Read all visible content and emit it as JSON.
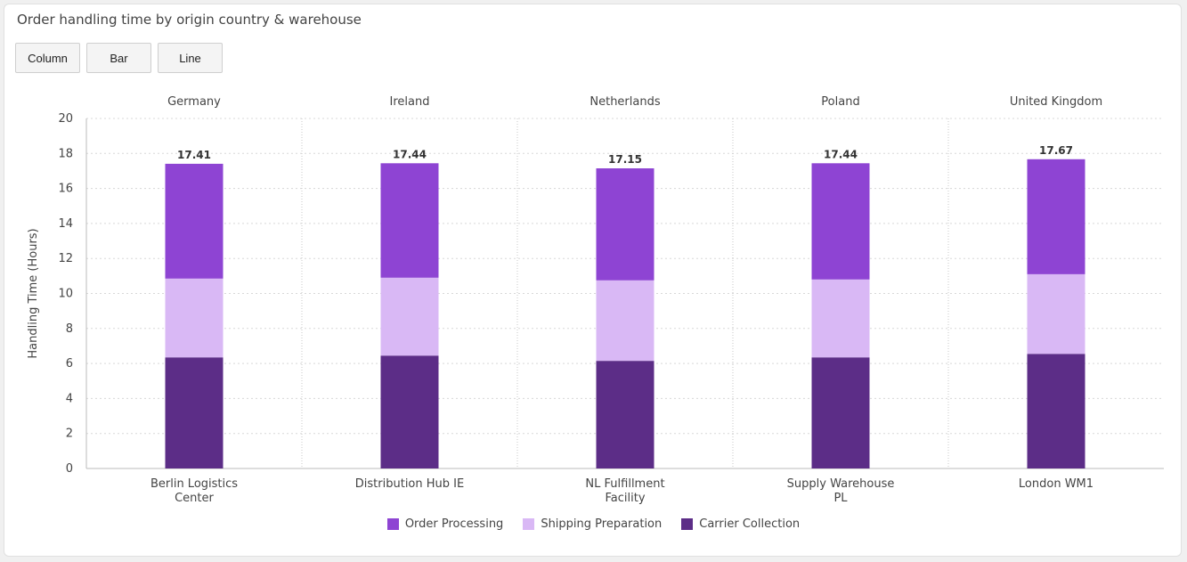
{
  "title": "Order handling time by origin country & warehouse",
  "buttons": {
    "column": "Column",
    "bar": "Bar",
    "line": "Line"
  },
  "chart_data": {
    "type": "bar",
    "stacked": true,
    "groups": [
      "Germany",
      "Ireland",
      "Netherlands",
      "Poland",
      "United Kingdom"
    ],
    "categories": [
      [
        "Berlin Logistics",
        "Center"
      ],
      [
        "Distribution Hub IE"
      ],
      [
        "NL Fulfillment",
        "Facility"
      ],
      [
        "Supply Warehouse",
        "PL"
      ],
      [
        "London WM1"
      ]
    ],
    "series": [
      {
        "name": "Carrier Collection",
        "color": "#5c2d87",
        "values": [
          6.35,
          6.45,
          6.15,
          6.35,
          6.55
        ]
      },
      {
        "name": "Shipping Preparation",
        "color": "#d9b8f5",
        "values": [
          4.5,
          4.45,
          4.6,
          4.45,
          4.55
        ]
      },
      {
        "name": "Order Processing",
        "color": "#8e44d3",
        "values": [
          6.56,
          6.54,
          6.4,
          6.64,
          6.57
        ]
      }
    ],
    "totals": [
      "17.41",
      "17.44",
      "17.15",
      "17.44",
      "17.67"
    ],
    "ylabel": "Handling Time (Hours)",
    "ylim": [
      0,
      20
    ],
    "yticks": [
      "0",
      "2",
      "4",
      "6",
      "8",
      "10",
      "12",
      "14",
      "16",
      "18",
      "20"
    ],
    "grid": true,
    "legend_position": "bottom",
    "legend_order": [
      "Order Processing",
      "Shipping Preparation",
      "Carrier Collection"
    ]
  }
}
